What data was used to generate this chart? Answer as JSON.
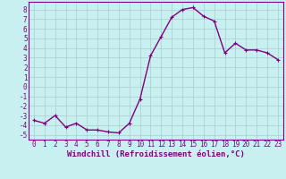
{
  "x": [
    0,
    1,
    2,
    3,
    4,
    5,
    6,
    7,
    8,
    9,
    10,
    11,
    12,
    13,
    14,
    15,
    16,
    17,
    18,
    19,
    20,
    21,
    22,
    23
  ],
  "y": [
    -3.5,
    -3.8,
    -3.0,
    -4.2,
    -3.8,
    -4.5,
    -4.5,
    -4.7,
    -4.8,
    -3.8,
    -1.3,
    3.2,
    5.2,
    7.2,
    8.0,
    8.2,
    7.3,
    6.8,
    3.5,
    4.5,
    3.8,
    3.8,
    3.5,
    2.8
  ],
  "line_color": "#800080",
  "marker": "+",
  "marker_color": "#800080",
  "bg_color": "#c8f0f0",
  "grid_color": "#aacccc",
  "xlabel": "Windchill (Refroidissement éolien,°C)",
  "xlabel_color": "#800080",
  "yticks": [
    -5,
    -4,
    -3,
    -2,
    -1,
    0,
    1,
    2,
    3,
    4,
    5,
    6,
    7,
    8
  ],
  "xticks": [
    0,
    1,
    2,
    3,
    4,
    5,
    6,
    7,
    8,
    9,
    10,
    11,
    12,
    13,
    14,
    15,
    16,
    17,
    18,
    19,
    20,
    21,
    22,
    23
  ],
  "ylim": [
    -5.5,
    8.8
  ],
  "xlim": [
    -0.5,
    23.5
  ],
  "tick_color": "#800080",
  "tick_fontsize": 5.5,
  "xlabel_fontsize": 6.5,
  "linewidth": 1.0,
  "markersize": 3.5,
  "spine_color": "#800080"
}
